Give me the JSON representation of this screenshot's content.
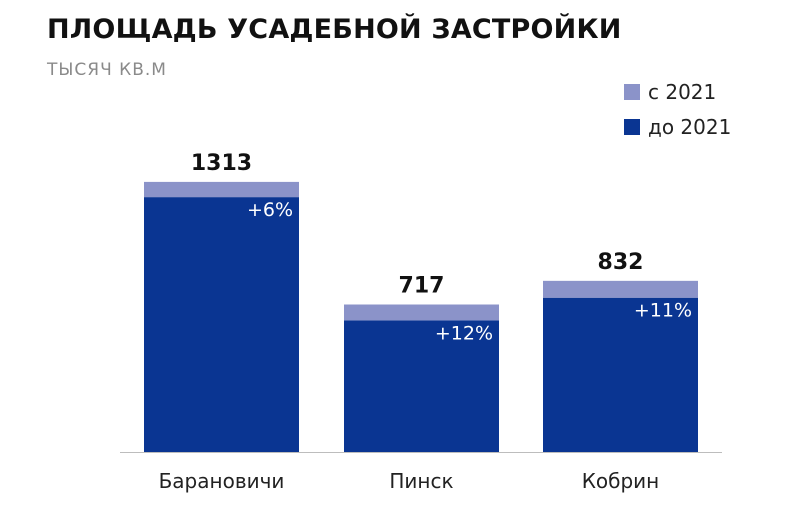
{
  "chart_data": {
    "type": "bar",
    "stacked": true,
    "title": "ПЛОЩАДЬ УСАДЕБНОЙ ЗАСТРОЙКИ",
    "subtitle": "ТЫСЯЧ КВ.М",
    "categories": [
      "Барановичи",
      "Пинск",
      "Кобрин"
    ],
    "series": [
      {
        "name": "до 2021",
        "color": "#0a3592",
        "values": [
          1239,
          640,
          750
        ]
      },
      {
        "name": "с 2021",
        "color": "#8b93c9",
        "values": [
          74,
          77,
          82
        ]
      }
    ],
    "totals": [
      "1313",
      "717",
      "832"
    ],
    "increase_labels": [
      "+6%",
      "+12%",
      "+11%"
    ],
    "ylim": [
      0,
      1400
    ],
    "legend_position": "top-right",
    "grid": false
  }
}
